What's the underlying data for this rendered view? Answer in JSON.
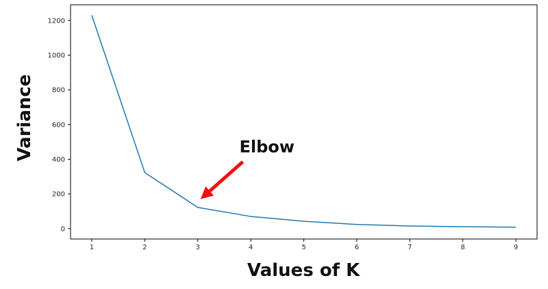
{
  "chart_data": {
    "type": "line",
    "title": "",
    "xlabel": "Values of K",
    "ylabel": "Variance",
    "x": [
      1,
      2,
      3,
      4,
      5,
      6,
      7,
      8,
      9
    ],
    "series": [
      {
        "values": [
          1230,
          323,
          122,
          70,
          42,
          24,
          15,
          11,
          8
        ],
        "color": "#1f77b4"
      }
    ],
    "xticks": [
      1,
      2,
      3,
      4,
      5,
      6,
      7,
      8,
      9
    ],
    "yticks": [
      0,
      200,
      400,
      600,
      800,
      1000,
      1200
    ],
    "xlim": [
      0.6,
      9.4
    ],
    "ylim": [
      -60,
      1290
    ],
    "grid": false,
    "annotation": {
      "text": "Elbow",
      "arrow_color": "#ee1111",
      "points_to": {
        "x": 3,
        "y": 170
      },
      "arrow_from": {
        "x": 3.85,
        "y": 385
      }
    }
  }
}
